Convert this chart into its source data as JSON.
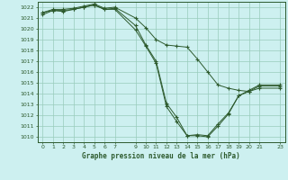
{
  "title": "Graphe pression niveau de la mer (hPa)",
  "background_color": "#cdf0f0",
  "grid_color": "#99ccbb",
  "line_color": "#2d5a2d",
  "xlim": [
    -0.5,
    23.5
  ],
  "ylim": [
    1009.5,
    1022.5
  ],
  "yticks": [
    1010,
    1011,
    1012,
    1013,
    1014,
    1015,
    1016,
    1017,
    1018,
    1019,
    1020,
    1021,
    1022
  ],
  "xticks": [
    0,
    1,
    2,
    3,
    4,
    5,
    6,
    7,
    9,
    10,
    11,
    12,
    13,
    14,
    15,
    16,
    17,
    18,
    19,
    20,
    21,
    23
  ],
  "series": [
    {
      "x": [
        0,
        1,
        2,
        3,
        4,
        5,
        6,
        7,
        9,
        10,
        11,
        12,
        13,
        14,
        15,
        16,
        17,
        18,
        19,
        20,
        21,
        23
      ],
      "y": [
        1021.3,
        1021.7,
        1021.6,
        1021.8,
        1022.0,
        1022.2,
        1021.8,
        1021.8,
        1019.9,
        1018.4,
        1016.8,
        1012.8,
        1011.4,
        1010.1,
        1010.1,
        1010.0,
        1011.0,
        1012.1,
        1013.8,
        1014.2,
        1014.7,
        1014.7
      ]
    },
    {
      "x": [
        0,
        1,
        2,
        3,
        4,
        5,
        6,
        7,
        9,
        10,
        11,
        12,
        13,
        14,
        15,
        16,
        17,
        18,
        19,
        20,
        21,
        23
      ],
      "y": [
        1021.5,
        1021.7,
        1021.7,
        1021.8,
        1022.0,
        1022.2,
        1021.8,
        1021.9,
        1020.3,
        1018.5,
        1017.0,
        1013.1,
        1011.8,
        1010.1,
        1010.2,
        1010.1,
        1011.2,
        1012.2,
        1013.8,
        1014.3,
        1014.8,
        1014.8
      ]
    },
    {
      "x": [
        0,
        1,
        2,
        3,
        4,
        5,
        6,
        7,
        9,
        10,
        11,
        12,
        13,
        14,
        15,
        16,
        17,
        18,
        19,
        20,
        21,
        23
      ],
      "y": [
        1021.5,
        1021.8,
        1021.8,
        1021.9,
        1022.1,
        1022.3,
        1021.9,
        1022.0,
        1021.0,
        1020.1,
        1019.0,
        1018.5,
        1018.4,
        1018.3,
        1017.2,
        1016.0,
        1014.8,
        1014.5,
        1014.3,
        1014.2,
        1014.5,
        1014.5
      ]
    }
  ]
}
